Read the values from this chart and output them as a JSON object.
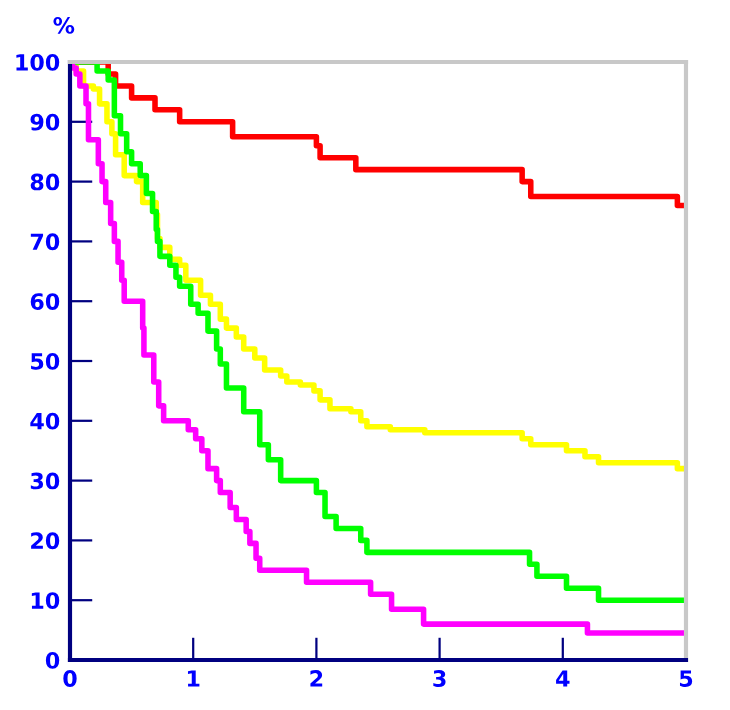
{
  "chart_data": {
    "type": "step",
    "ylabel": "%",
    "xlim": [
      0,
      5
    ],
    "ylim": [
      0,
      100
    ],
    "xticks": [
      0,
      1,
      2,
      3,
      4,
      5
    ],
    "yticks": [
      0,
      10,
      20,
      30,
      40,
      50,
      60,
      70,
      80,
      90,
      100
    ],
    "grid": false,
    "marker": "none",
    "line_style": "solid",
    "series": [
      {
        "color": "#ff0000",
        "x": [
          0,
          0.31,
          0.37,
          0.5,
          0.69,
          0.89,
          1.32,
          2.0,
          2.03,
          2.32,
          3.67,
          3.74,
          4.93,
          5.0
        ],
        "values": [
          100,
          98,
          96,
          94,
          92,
          90,
          87.5,
          86,
          84,
          82,
          80,
          77.5,
          76,
          76
        ]
      },
      {
        "color": "#ffff00",
        "x": [
          0,
          0.05,
          0.11,
          0.19,
          0.24,
          0.3,
          0.34,
          0.37,
          0.44,
          0.54,
          0.59,
          0.7,
          0.71,
          0.73,
          0.81,
          0.89,
          0.94,
          1.06,
          1.14,
          1.22,
          1.27,
          1.35,
          1.41,
          1.5,
          1.58,
          1.71,
          1.76,
          1.87,
          1.98,
          2.03,
          2.11,
          2.28,
          2.36,
          2.41,
          2.6,
          2.88,
          3.67,
          3.74,
          4.03,
          4.18,
          4.29,
          4.93,
          5.0
        ],
        "values": [
          100,
          98.5,
          96,
          95.5,
          93,
          90,
          88,
          84.5,
          81,
          80,
          76.5,
          74.5,
          70.5,
          69,
          67,
          66,
          63.5,
          61,
          59.5,
          57,
          55.5,
          54,
          52,
          50.5,
          48.5,
          47.5,
          46.5,
          46,
          45,
          43.5,
          42,
          41.5,
          40,
          39,
          38.5,
          38,
          37,
          36,
          35,
          34,
          33,
          32,
          32
        ]
      },
      {
        "color": "#00ff00",
        "x": [
          0,
          0.22,
          0.31,
          0.36,
          0.41,
          0.46,
          0.5,
          0.57,
          0.62,
          0.67,
          0.7,
          0.71,
          0.73,
          0.81,
          0.86,
          0.89,
          0.98,
          1.04,
          1.12,
          1.19,
          1.22,
          1.27,
          1.41,
          1.54,
          1.61,
          1.71,
          2.0,
          2.07,
          2.16,
          2.36,
          2.41,
          3.73,
          3.79,
          4.03,
          4.29,
          5.0
        ],
        "values": [
          100,
          98.5,
          97,
          91,
          88,
          85,
          83,
          81,
          78,
          75,
          72,
          70,
          67.5,
          66,
          64,
          62.5,
          59.5,
          58,
          55,
          52,
          49.5,
          45.5,
          41.5,
          36,
          33.5,
          30,
          28,
          24,
          22,
          20,
          18,
          16,
          14,
          12,
          10,
          10
        ]
      },
      {
        "color": "#ff00ff",
        "x": [
          0,
          0.02,
          0.05,
          0.08,
          0.13,
          0.15,
          0.23,
          0.26,
          0.29,
          0.33,
          0.36,
          0.39,
          0.42,
          0.44,
          0.59,
          0.6,
          0.68,
          0.72,
          0.76,
          0.96,
          1.02,
          1.07,
          1.12,
          1.19,
          1.22,
          1.3,
          1.35,
          1.43,
          1.46,
          1.51,
          1.54,
          1.92,
          2.44,
          2.61,
          2.87,
          4.2,
          5.0
        ],
        "values": [
          100,
          99,
          98,
          96,
          93,
          87,
          83,
          80,
          76.5,
          73,
          70,
          66.5,
          63.5,
          60,
          55.5,
          51,
          46.5,
          42.5,
          40,
          38.5,
          37,
          35,
          32,
          30,
          28,
          25.5,
          23.5,
          21.5,
          19.5,
          17,
          15,
          13,
          11,
          8.5,
          6,
          4.5,
          4.5
        ]
      }
    ]
  }
}
